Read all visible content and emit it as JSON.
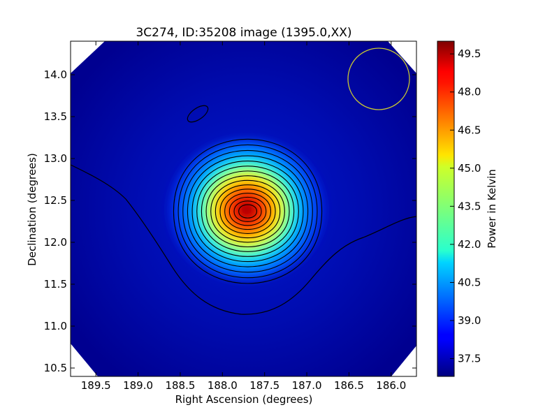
{
  "chart_data": {
    "type": "heatmap",
    "title": "3C274, ID:35208 image (1395.0,XX)",
    "xlabel": "Right Ascension (degrees)",
    "ylabel": "Declination (degrees)",
    "colorbar_label": "Power in Kelvin",
    "x_inverted": true,
    "xlim": [
      189.8,
      185.7
    ],
    "ylim": [
      10.4,
      14.4
    ],
    "x_ticks": [
      189.5,
      189.0,
      188.5,
      188.0,
      187.5,
      187.0,
      186.5,
      186.0
    ],
    "x_tick_labels": [
      "189.5",
      "189.0",
      "188.5",
      "188.0",
      "187.5",
      "187.0",
      "186.5",
      "186.0"
    ],
    "y_ticks": [
      10.5,
      11.0,
      11.5,
      12.0,
      12.5,
      13.0,
      13.5,
      14.0
    ],
    "y_tick_labels": [
      "10.5",
      "11.0",
      "11.5",
      "12.0",
      "12.5",
      "13.0",
      "13.5",
      "14.0"
    ],
    "colorbar_range": [
      36.8,
      50.0
    ],
    "colorbar_ticks": [
      37.5,
      39.0,
      40.5,
      42.0,
      43.5,
      45.0,
      46.5,
      48.0,
      49.5
    ],
    "colorbar_tick_labels": [
      "37.5",
      "39.0",
      "40.5",
      "42.0",
      "43.5",
      "45.0",
      "46.5",
      "48.0",
      "49.5"
    ],
    "colormap": "jet",
    "source_peak": {
      "ra": 187.7,
      "dec": 12.37,
      "value": 50.0
    },
    "contour_levels": [
      37.8,
      38.5,
      39.3,
      40.1,
      41.0,
      41.8,
      42.6,
      43.4,
      44.2,
      45.0,
      45.8,
      46.6,
      47.4,
      48.2,
      49.0
    ],
    "beam_circle": {
      "ra": 186.1,
      "dec": 13.95,
      "radius_deg": 0.37,
      "color": "#c8c832"
    },
    "contour_color": "#000000",
    "background_outside_color": "#ffffff"
  }
}
